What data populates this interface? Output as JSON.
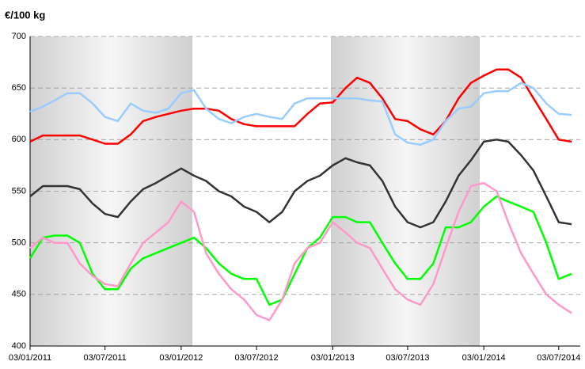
{
  "chart_data": {
    "type": "line",
    "title": "€/100 kg",
    "x": [
      "03/01/2011",
      "03/02/2011",
      "03/03/2011",
      "03/04/2011",
      "03/05/2011",
      "03/06/2011",
      "03/07/2011",
      "03/08/2011",
      "03/09/2011",
      "03/10/2011",
      "03/11/2011",
      "03/12/2011",
      "03/01/2012",
      "03/02/2012",
      "03/03/2012",
      "03/04/2012",
      "03/05/2012",
      "03/06/2012",
      "03/07/2012",
      "03/08/2012",
      "03/09/2012",
      "03/10/2012",
      "03/11/2012",
      "03/12/2012",
      "03/01/2013",
      "03/02/2013",
      "03/03/2013",
      "03/04/2013",
      "03/05/2013",
      "03/06/2013",
      "03/07/2013",
      "03/08/2013",
      "03/09/2013",
      "03/10/2013",
      "03/11/2013",
      "03/12/2013",
      "03/01/2014",
      "03/02/2014",
      "03/03/2014",
      "03/04/2014",
      "03/05/2014",
      "03/06/2014",
      "03/07/2014",
      "03/08/2014"
    ],
    "series": [
      {
        "color": "#ff0000",
        "values": [
          598,
          604,
          604,
          604,
          604,
          600,
          596,
          596,
          605,
          618,
          622,
          625,
          628,
          630,
          630,
          628,
          620,
          615,
          613,
          613,
          613,
          613,
          625,
          635,
          636,
          650,
          660,
          655,
          640,
          620,
          618,
          610,
          605,
          618,
          640,
          655,
          662,
          668,
          668,
          660,
          640,
          620,
          600,
          598
        ]
      },
      {
        "color": "#99ccff",
        "values": [
          627,
          632,
          638,
          645,
          645,
          635,
          622,
          618,
          635,
          628,
          626,
          630,
          645,
          648,
          630,
          620,
          616,
          622,
          625,
          622,
          620,
          635,
          640,
          640,
          640,
          640,
          640,
          638,
          637,
          605,
          597,
          595,
          600,
          618,
          630,
          632,
          645,
          647,
          647,
          655,
          650,
          635,
          625,
          624
        ]
      },
      {
        "color": "#333333",
        "values": [
          545,
          555,
          555,
          555,
          552,
          538,
          528,
          525,
          540,
          552,
          558,
          565,
          572,
          565,
          560,
          550,
          545,
          535,
          530,
          520,
          530,
          550,
          560,
          565,
          575,
          582,
          578,
          575,
          560,
          535,
          520,
          515,
          520,
          540,
          565,
          580,
          598,
          600,
          598,
          585,
          570,
          545,
          520,
          518
        ]
      },
      {
        "color": "#00ff00",
        "values": [
          485,
          505,
          507,
          507,
          500,
          470,
          455,
          455,
          475,
          485,
          490,
          495,
          500,
          505,
          495,
          480,
          470,
          465,
          465,
          440,
          445,
          470,
          495,
          505,
          525,
          525,
          520,
          520,
          500,
          480,
          465,
          465,
          480,
          515,
          515,
          520,
          535,
          545,
          540,
          535,
          530,
          500,
          465,
          470
        ]
      },
      {
        "color": "#ff99cc",
        "values": [
          495,
          505,
          500,
          500,
          480,
          468,
          460,
          458,
          480,
          500,
          510,
          520,
          540,
          530,
          490,
          470,
          455,
          445,
          430,
          425,
          445,
          480,
          495,
          500,
          520,
          510,
          500,
          495,
          475,
          455,
          445,
          440,
          460,
          495,
          530,
          555,
          558,
          550,
          520,
          490,
          470,
          450,
          440,
          432
        ]
      }
    ],
    "xlim": [
      "03/01/2011",
      "24/08/2014"
    ],
    "xticks": [
      "03/01/2011",
      "03/07/2011",
      "03/01/2012",
      "03/07/2012",
      "03/01/2013",
      "03/07/2013",
      "03/01/2014",
      "03/07/2014"
    ],
    "ylim": [
      400,
      700
    ],
    "yticks": [
      400,
      450,
      500,
      550,
      600,
      650,
      700
    ],
    "grid": true
  }
}
